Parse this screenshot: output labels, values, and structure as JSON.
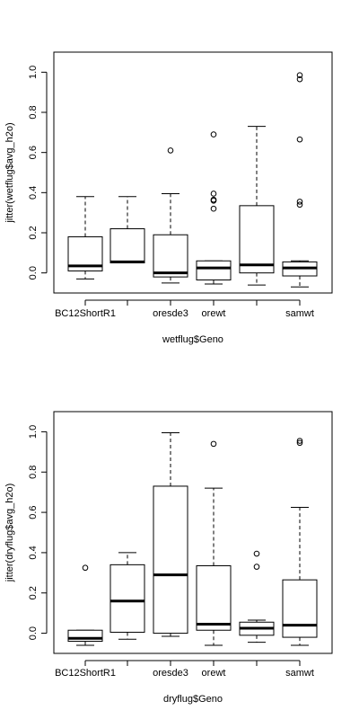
{
  "chart_data": [
    {
      "type": "boxplot",
      "xlabel": "wetflug$Geno",
      "ylabel": "jitter(wetflug$avg_h2o)",
      "ylim": [
        -0.1,
        1.1
      ],
      "yticks": [
        0.0,
        0.2,
        0.4,
        0.6,
        0.8,
        1.0
      ],
      "ytick_labels": [
        "0.0",
        "0.2",
        "0.4",
        "0.6",
        "0.8",
        "1.0"
      ],
      "categories": [
        "BC12ShortR1",
        "",
        "oresde3",
        "orewt",
        "",
        "samwt"
      ],
      "boxes": [
        {
          "whisker_low": -0.03,
          "q1": 0.01,
          "median": 0.035,
          "q3": 0.18,
          "whisker_high": 0.38,
          "outliers": []
        },
        {
          "whisker_low": 0.05,
          "q1": 0.05,
          "median": 0.055,
          "q3": 0.22,
          "whisker_high": 0.38,
          "outliers": []
        },
        {
          "whisker_low": -0.05,
          "q1": -0.02,
          "median": 0.0,
          "q3": 0.19,
          "whisker_high": 0.395,
          "outliers": [
            0.61
          ]
        },
        {
          "whisker_low": -0.055,
          "q1": -0.035,
          "median": 0.025,
          "q3": 0.06,
          "whisker_high": 0.06,
          "outliers": [
            0.32,
            0.36,
            0.365,
            0.395,
            0.69
          ]
        },
        {
          "whisker_low": -0.06,
          "q1": 0.0,
          "median": 0.04,
          "q3": 0.335,
          "whisker_high": 0.73,
          "outliers": []
        },
        {
          "whisker_low": -0.07,
          "q1": -0.015,
          "median": 0.025,
          "q3": 0.055,
          "whisker_high": 0.06,
          "outliers": [
            0.34,
            0.355,
            0.665,
            0.965,
            0.985
          ]
        }
      ]
    },
    {
      "type": "boxplot",
      "xlabel": "dryflug$Geno",
      "ylabel": "jitter(dryflug$avg_h2o)",
      "ylim": [
        -0.1,
        1.1
      ],
      "yticks": [
        0.0,
        0.2,
        0.4,
        0.6,
        0.8,
        1.0
      ],
      "ytick_labels": [
        "0.0",
        "0.2",
        "0.4",
        "0.6",
        "0.8",
        "1.0"
      ],
      "categories": [
        "BC12ShortR1",
        "",
        "oresde3",
        "orewt",
        "",
        "samwt"
      ],
      "boxes": [
        {
          "whisker_low": -0.06,
          "q1": -0.04,
          "median": -0.025,
          "q3": 0.015,
          "whisker_high": 0.015,
          "outliers": [
            0.325
          ]
        },
        {
          "whisker_low": -0.03,
          "q1": 0.005,
          "median": 0.16,
          "q3": 0.34,
          "whisker_high": 0.4,
          "outliers": []
        },
        {
          "whisker_low": -0.015,
          "q1": 0.0,
          "median": 0.29,
          "q3": 0.73,
          "whisker_high": 0.995,
          "outliers": []
        },
        {
          "whisker_low": -0.06,
          "q1": 0.015,
          "median": 0.045,
          "q3": 0.335,
          "whisker_high": 0.72,
          "outliers": [
            0.94
          ]
        },
        {
          "whisker_low": -0.045,
          "q1": -0.01,
          "median": 0.025,
          "q3": 0.055,
          "whisker_high": 0.065,
          "outliers": [
            0.33,
            0.395
          ]
        },
        {
          "whisker_low": -0.06,
          "q1": -0.02,
          "median": 0.04,
          "q3": 0.265,
          "whisker_high": 0.625,
          "outliers": [
            0.945,
            0.955
          ]
        }
      ]
    }
  ]
}
